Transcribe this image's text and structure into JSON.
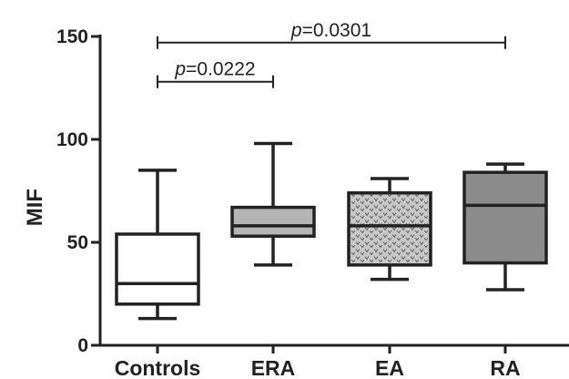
{
  "chart_data": {
    "type": "box",
    "title": "",
    "xlabel": "",
    "ylabel": "MIF",
    "ylim": [
      0,
      150
    ],
    "yticks": [
      0,
      50,
      100,
      150
    ],
    "categories": [
      "Controls",
      "ERA",
      "EA",
      "RA"
    ],
    "boxes": [
      {
        "name": "Controls",
        "min": 13,
        "q1": 20,
        "median": 30,
        "q3": 54,
        "max": 85,
        "fill": "#ffffff",
        "pattern": "none"
      },
      {
        "name": "ERA",
        "min": 39,
        "q1": 53,
        "median": 58,
        "q3": 67,
        "max": 98,
        "fill": "#b5b5b5",
        "pattern": "none"
      },
      {
        "name": "EA",
        "min": 32,
        "q1": 39,
        "median": 58,
        "q3": 74,
        "max": 81,
        "fill": "#c8c8c8",
        "pattern": "v-marks"
      },
      {
        "name": "RA",
        "min": 27,
        "q1": 40,
        "median": 68,
        "q3": 84,
        "max": 88,
        "fill": "#8c8c8c",
        "pattern": "none"
      }
    ],
    "comparisons": [
      {
        "from": "Controls",
        "to": "ERA",
        "y": 128,
        "p_symbol": "p",
        "p_value": "=0.0222"
      },
      {
        "from": "Controls",
        "to": "RA",
        "y": 147,
        "p_symbol": "p",
        "p_value": "=0.0301"
      }
    ],
    "grid": false,
    "legend": "none"
  }
}
